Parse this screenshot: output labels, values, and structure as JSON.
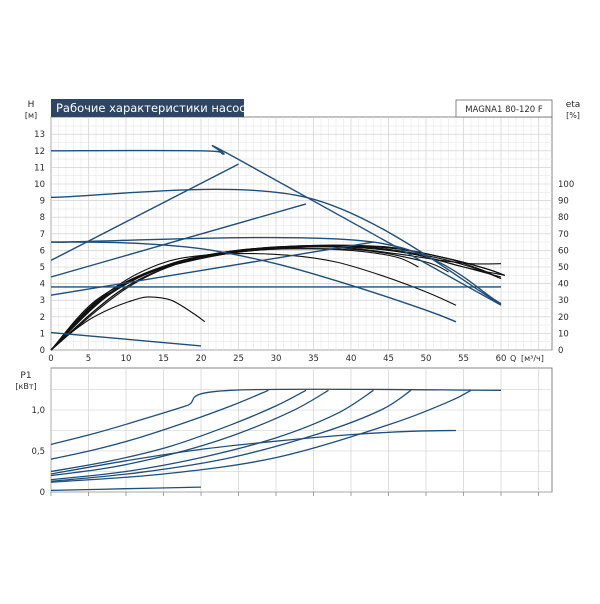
{
  "chart_data": [
    {
      "type": "line",
      "title": "Рабочие характеристики насоса",
      "model": "MAGNA1 80-120 F",
      "ylabel": "H",
      "yunit": "[м]",
      "y2label": "eta",
      "y2unit": "[%]",
      "xlabel": "Q",
      "xunit": "[м³/ч]",
      "xlim": [
        0,
        66
      ],
      "ylim": [
        0,
        13.5
      ],
      "y2lim": [
        0,
        100
      ],
      "x_ticks": [
        "0",
        "5",
        "10",
        "15",
        "20",
        "25",
        "30",
        "35",
        "40",
        "45",
        "50",
        "55",
        "60"
      ],
      "y_ticks": [
        "0",
        "1",
        "2",
        "3",
        "4",
        "5",
        "6",
        "7",
        "8",
        "9",
        "10",
        "11",
        "12",
        "13"
      ],
      "y2_ticks": [
        "0",
        "10",
        "20",
        "30",
        "40",
        "50",
        "60",
        "70",
        "80",
        "90",
        "100"
      ],
      "grid": true,
      "series_pump": [
        {
          "points": [
            [
              0,
              12
            ],
            [
              20,
              12
            ],
            [
              23,
              11.8
            ],
            [
              24.5,
              11.6
            ],
            [
              60,
              2.7
            ]
          ]
        },
        {
          "points": [
            [
              0,
              9.2
            ],
            [
              34,
              9.2
            ],
            [
              60,
              2.75
            ]
          ]
        },
        {
          "points": [
            [
              0,
              6.5
            ],
            [
              43,
              6.5
            ],
            [
              60,
              2.8
            ]
          ]
        },
        {
          "points": [
            [
              0,
              3.8
            ],
            [
              60,
              3.8
            ]
          ]
        },
        {
          "points": [
            [
              0,
              5.4
            ],
            [
              25,
              11.2
            ]
          ]
        },
        {
          "points": [
            [
              0,
              4.4
            ],
            [
              34,
              8.8
            ]
          ]
        },
        {
          "points": [
            [
              0,
              3.3
            ],
            [
              43,
              6.5
            ]
          ]
        },
        {
          "points": [
            [
              0,
              1.05
            ],
            [
              20,
              0.25
            ]
          ]
        },
        {
          "points": [
            [
              0,
              6.5
            ],
            [
              10,
              6.45
            ],
            [
              20,
              6.1
            ],
            [
              30,
              5.2
            ],
            [
              40,
              3.9
            ],
            [
              50,
              2.4
            ],
            [
              54,
              1.7
            ]
          ]
        }
      ],
      "series_eta": [
        {
          "points": [
            [
              0,
              0
            ],
            [
              2,
              8
            ],
            [
              5,
              18
            ],
            [
              8,
              25
            ],
            [
              11,
              30
            ],
            [
              13,
              32
            ],
            [
              16,
              30
            ],
            [
              19,
              22
            ],
            [
              20.5,
              17
            ]
          ]
        },
        {
          "points": [
            [
              0,
              0
            ],
            [
              4,
              20
            ],
            [
              8,
              36
            ],
            [
              12,
              47
            ],
            [
              17,
              55
            ],
            [
              24,
              58
            ],
            [
              32,
              57
            ],
            [
              38,
              53
            ],
            [
              44,
              45
            ],
            [
              50,
              35
            ],
            [
              54,
              27
            ]
          ]
        },
        {
          "points": [
            [
              0,
              0
            ],
            [
              5,
              25
            ],
            [
              10,
              40
            ],
            [
              15,
              50
            ],
            [
              20,
              56
            ],
            [
              27,
              60
            ],
            [
              34,
              61
            ],
            [
              42,
              60
            ],
            [
              50,
              53
            ],
            [
              53,
              47
            ]
          ]
        },
        {
          "points": [
            [
              0,
              0
            ],
            [
              6,
              28
            ],
            [
              12,
              45
            ],
            [
              18,
              53
            ],
            [
              25,
              59
            ],
            [
              32,
              61
            ],
            [
              40,
              60
            ],
            [
              46,
              56
            ],
            [
              49,
              50
            ]
          ]
        },
        {
          "points": [
            [
              0,
              0
            ],
            [
              6,
              30
            ],
            [
              14,
              48
            ],
            [
              22,
              57
            ],
            [
              30,
              61
            ],
            [
              38,
              62
            ],
            [
              46,
              58
            ],
            [
              52,
              54
            ],
            [
              56,
              52
            ],
            [
              60,
              52
            ]
          ]
        },
        {
          "points": [
            [
              0,
              0
            ],
            [
              7,
              31
            ],
            [
              15,
              50
            ],
            [
              23,
              58
            ],
            [
              32,
              62
            ],
            [
              40,
              62
            ],
            [
              48,
              58
            ],
            [
              55,
              50
            ],
            [
              60,
              44
            ]
          ]
        },
        {
          "points": [
            [
              0,
              0
            ],
            [
              7,
              33
            ],
            [
              16,
              52
            ],
            [
              25,
              60
            ],
            [
              33,
              62
            ],
            [
              42,
              62
            ],
            [
              50,
              57
            ],
            [
              56,
              50
            ],
            [
              60,
              43
            ]
          ]
        },
        {
          "points": [
            [
              0,
              0
            ],
            [
              8,
              34
            ],
            [
              17,
              53
            ],
            [
              26,
              60
            ],
            [
              35,
              63
            ],
            [
              44,
              62
            ],
            [
              52,
              56
            ],
            [
              57,
              49
            ],
            [
              60,
              43
            ]
          ]
        },
        {
          "points": [
            [
              0,
              0
            ],
            [
              9,
              35
            ],
            [
              18,
              54
            ],
            [
              27,
              61
            ],
            [
              36,
              63
            ],
            [
              45,
              62
            ],
            [
              53,
              55
            ],
            [
              58,
              49
            ],
            [
              60.5,
              45
            ]
          ]
        },
        {
          "points": [
            [
              0,
              0
            ],
            [
              10,
              37
            ],
            [
              19,
              55
            ],
            [
              28,
              61
            ],
            [
              37,
              63
            ],
            [
              46,
              61
            ],
            [
              53,
              55
            ],
            [
              58,
              49
            ],
            [
              60.5,
              45
            ]
          ]
        },
        {
          "points": [
            [
              0,
              0
            ],
            [
              10,
              38
            ],
            [
              20,
              56
            ],
            [
              30,
              62
            ],
            [
              40,
              62
            ],
            [
              48,
              58
            ],
            [
              55,
              50
            ],
            [
              60.5,
              45
            ]
          ]
        }
      ]
    },
    {
      "type": "line",
      "ylabel": "P1",
      "yunit": "[кВт]",
      "xlim": [
        0,
        66
      ],
      "ylim": [
        0,
        1.45
      ],
      "x_ticks": [
        "0",
        "5",
        "10",
        "15",
        "20",
        "25",
        "30",
        "35",
        "40",
        "45",
        "50",
        "55",
        "60"
      ],
      "y_ticks": [
        "0",
        "0,5",
        "1,0"
      ],
      "grid": true,
      "series_power": [
        {
          "points": [
            [
              0,
              0.58
            ],
            [
              6,
              0.72
            ],
            [
              12,
              0.88
            ],
            [
              18,
              1.05
            ],
            [
              24,
              1.24
            ],
            [
              60,
              1.24
            ]
          ]
        },
        {
          "points": [
            [
              0,
              0.4
            ],
            [
              6,
              0.52
            ],
            [
              12,
              0.67
            ],
            [
              18,
              0.85
            ],
            [
              24,
              1.05
            ],
            [
              29,
              1.24
            ]
          ]
        },
        {
          "points": [
            [
              0,
              0.25
            ],
            [
              8,
              0.38
            ],
            [
              16,
              0.56
            ],
            [
              24,
              0.82
            ],
            [
              30,
              1.05
            ],
            [
              34,
              1.24
            ]
          ]
        },
        {
          "points": [
            [
              0,
              0.2
            ],
            [
              8,
              0.3
            ],
            [
              16,
              0.46
            ],
            [
              24,
              0.68
            ],
            [
              32,
              0.98
            ],
            [
              37,
              1.24
            ]
          ]
        },
        {
          "points": [
            [
              0,
              0.15
            ],
            [
              10,
              0.25
            ],
            [
              20,
              0.42
            ],
            [
              30,
              0.66
            ],
            [
              38,
              0.95
            ],
            [
              43,
              1.24
            ]
          ]
        },
        {
          "points": [
            [
              0,
              0.13
            ],
            [
              12,
              0.24
            ],
            [
              24,
              0.42
            ],
            [
              36,
              0.72
            ],
            [
              44,
              1.0
            ],
            [
              48,
              1.24
            ]
          ]
        },
        {
          "points": [
            [
              0,
              0.12
            ],
            [
              15,
              0.22
            ],
            [
              30,
              0.42
            ],
            [
              45,
              0.82
            ],
            [
              53,
              1.1
            ],
            [
              56,
              1.24
            ]
          ]
        },
        {
          "points": [
            [
              0,
              0.22
            ],
            [
              10,
              0.38
            ],
            [
              20,
              0.52
            ],
            [
              30,
              0.62
            ],
            [
              40,
              0.7
            ],
            [
              48,
              0.74
            ],
            [
              54,
              0.75
            ]
          ]
        },
        {
          "points": [
            [
              0,
              0.02
            ],
            [
              10,
              0.04
            ],
            [
              20,
              0.06
            ]
          ]
        }
      ]
    }
  ]
}
